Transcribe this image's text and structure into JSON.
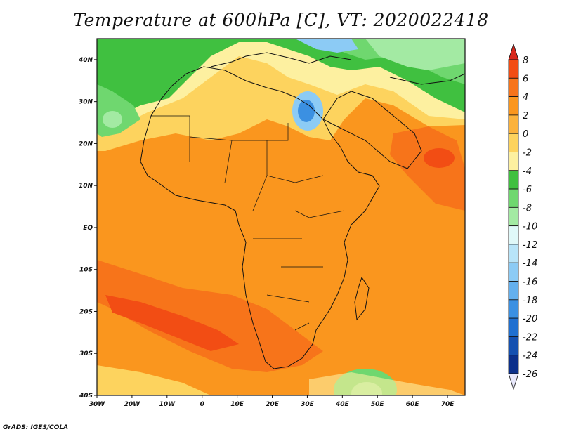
{
  "title": "Temperature at 600hPa [C], VT: 2020022418",
  "credit": "GrADS: IGES/COLA",
  "map": {
    "lon_ticks": [
      "30W",
      "20W",
      "10W",
      "0",
      "10E",
      "20E",
      "30E",
      "40E",
      "50E",
      "60E",
      "70E"
    ],
    "lat_ticks": [
      "40N",
      "30N",
      "20N",
      "10N",
      "EQ",
      "10S",
      "20S",
      "30S",
      "40S"
    ]
  },
  "colorbar": {
    "labels": [
      "8",
      "6",
      "4",
      "2",
      "0",
      "-2",
      "-4",
      "-6",
      "-8",
      "-10",
      "-12",
      "-14",
      "-16",
      "-18",
      "-20",
      "-22",
      "-24",
      "-26"
    ],
    "colors": [
      "#d9281c",
      "#f24d14",
      "#f7741a",
      "#fa961e",
      "#fbb23c",
      "#fdd35e",
      "#fdf0a0",
      "#40c040",
      "#6fd76f",
      "#a3eaa3",
      "#e0f8f8",
      "#b8e4f8",
      "#8ccbf5",
      "#64b0ee",
      "#3b90e2",
      "#1f6fd0",
      "#1450b0",
      "#0b2f8a",
      "#061870"
    ]
  }
}
